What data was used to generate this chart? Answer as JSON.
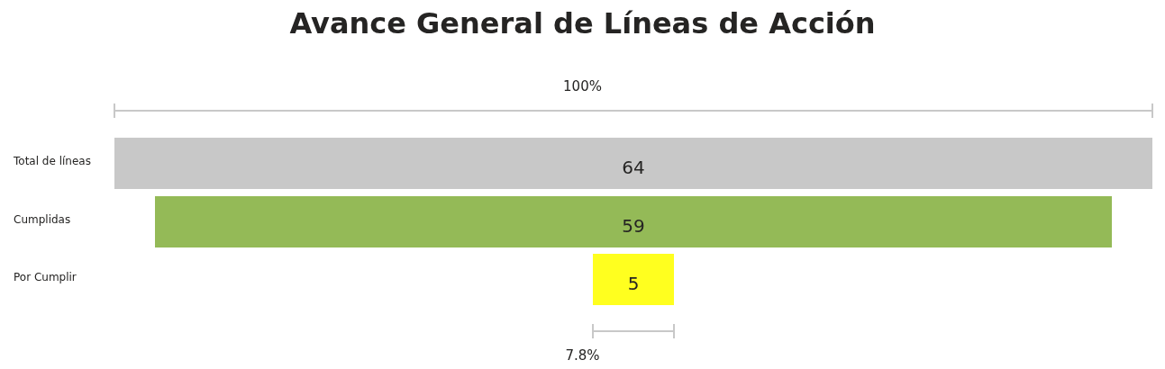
{
  "chart_data": {
    "type": "other",
    "title": "Avance General de Líneas de Acción",
    "categories": [
      "Total de líneas",
      "Cumplidas",
      "Por Cumplir"
    ],
    "values": [
      64,
      59,
      5
    ],
    "colors": [
      "#c8c8c8",
      "#94ba57",
      "#ffff1f"
    ],
    "data_labels": true,
    "annotations": [
      "100%",
      "7.8%"
    ]
  }
}
